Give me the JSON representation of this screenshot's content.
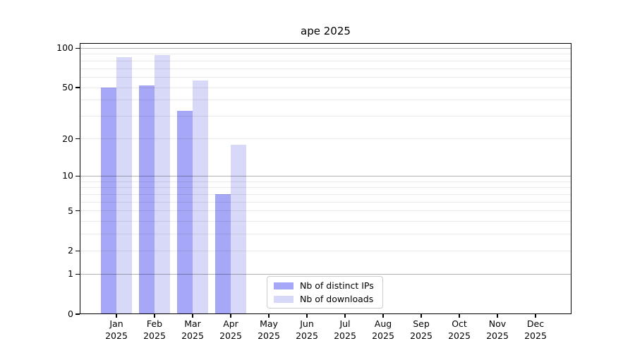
{
  "chart_data": {
    "type": "bar",
    "title": "ape 2025",
    "x_year": "2025",
    "categories": [
      "Jan",
      "Feb",
      "Mar",
      "Apr",
      "May",
      "Jun",
      "Jul",
      "Aug",
      "Sep",
      "Oct",
      "Nov",
      "Dec"
    ],
    "series": [
      {
        "name": "Nb of distinct IPs",
        "color": "#a7a7f7",
        "values": [
          50,
          52,
          33,
          7,
          null,
          null,
          null,
          null,
          null,
          null,
          null,
          null
        ]
      },
      {
        "name": "Nb of downloads",
        "color": "#d8d8f8",
        "values": [
          86,
          89,
          57,
          18,
          null,
          null,
          null,
          null,
          null,
          null,
          null,
          null
        ]
      }
    ],
    "y_axis": {
      "scale": "log1p",
      "ticks": [
        0,
        1,
        2,
        5,
        10,
        20,
        50,
        100
      ],
      "range": [
        0,
        110
      ]
    },
    "grid": {
      "major_at": [
        1,
        10,
        100
      ],
      "minor_decades": true,
      "minors_below_one": false
    },
    "legend": {
      "location": "lower-center"
    },
    "colors": {
      "bar_distinct_ips": "#a7a7f7",
      "bar_downloads": "#d8d8f8",
      "major_grid": "rgba(0,0,0,0.30)",
      "minor_grid": "rgba(0,0,0,0.085)",
      "spine": "#000000",
      "text": "#000000",
      "background": "#ffffff"
    }
  }
}
